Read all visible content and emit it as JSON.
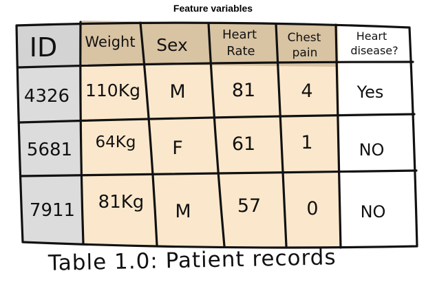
{
  "feature_label": "Feature variables",
  "caption": "Table 1.0: Patient records",
  "colors": {
    "id_column": "#dcdcdc",
    "feature_columns": "#fbe8cc",
    "header_feature": "#d8c3a3",
    "header_id": "#d3d3d3",
    "ink": "#111111"
  },
  "table": {
    "headers": [
      {
        "line1": "ID",
        "line2": ""
      },
      {
        "line1": "Weight",
        "line2": ""
      },
      {
        "line1": "Sex",
        "line2": ""
      },
      {
        "line1": "Heart",
        "line2": "Rate"
      },
      {
        "line1": "Chest",
        "line2": "pain"
      },
      {
        "line1": "Heart",
        "line2": "disease?"
      }
    ],
    "rows": [
      [
        "4326",
        "110Kg",
        "M",
        "81",
        "4",
        "Yes"
      ],
      [
        "5681",
        "64Kg",
        "F",
        "61",
        "1",
        "NO"
      ],
      [
        "7911",
        "81Kg",
        "M",
        "57",
        "0",
        "NO"
      ]
    ]
  }
}
